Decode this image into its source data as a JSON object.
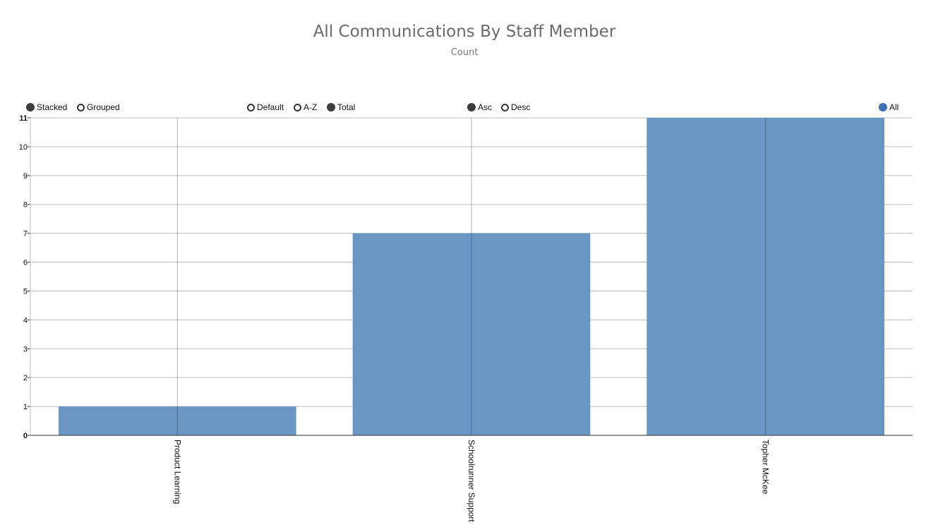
{
  "header": {
    "title": "All Communications By Staff Member",
    "subtitle": "Count"
  },
  "controls": {
    "layout": [
      {
        "label": "Stacked",
        "selected": true
      },
      {
        "label": "Grouped",
        "selected": false
      }
    ],
    "sort_by": [
      {
        "label": "Default",
        "selected": false
      },
      {
        "label": "A-Z",
        "selected": false
      },
      {
        "label": "Total",
        "selected": true
      }
    ],
    "order": [
      {
        "label": "Asc",
        "selected": true
      },
      {
        "label": "Desc",
        "selected": false
      }
    ],
    "legend": [
      {
        "label": "All",
        "color": "#3c70b4",
        "selected": true
      }
    ]
  },
  "chart_data": {
    "type": "bar",
    "title": "All Communications By Staff Member",
    "subtitle": "Count",
    "categories": [
      "Product Learning",
      "Schoolrunner Support",
      "Topher McKee"
    ],
    "series": [
      {
        "name": "All",
        "values": [
          1,
          7,
          11
        ],
        "color": "#6a96c4"
      }
    ],
    "ylim": [
      0,
      11
    ],
    "yticks": [
      0,
      1,
      2,
      3,
      4,
      5,
      6,
      7,
      8,
      9,
      10,
      11
    ],
    "grid": true,
    "legend_position": "top-right"
  }
}
